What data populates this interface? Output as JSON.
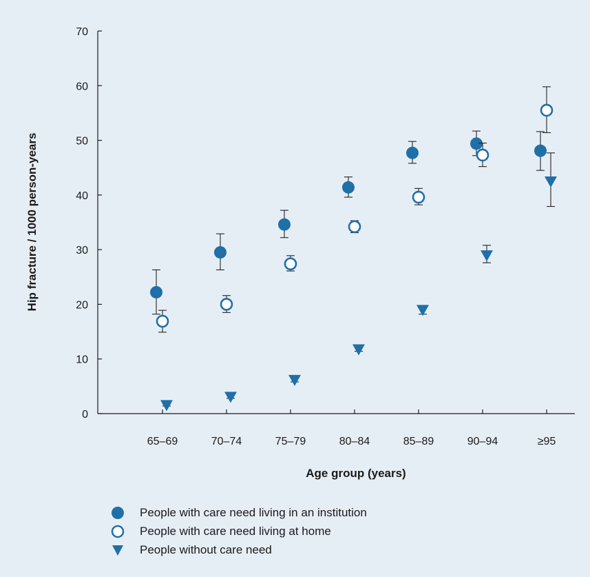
{
  "chart_data": {
    "type": "scatter",
    "xlabel": "Age group (years)",
    "ylabel": "Hip fracture / 1000 person-years",
    "categories": [
      "65–69",
      "70–74",
      "75–79",
      "80–84",
      "85–89",
      "90–94",
      "≥95"
    ],
    "ylim": [
      0,
      70
    ],
    "yticks": [
      0,
      10,
      20,
      30,
      40,
      50,
      60,
      70
    ],
    "grid": false,
    "legend_position": "bottom-left",
    "colors": {
      "series": "#1f6fa8",
      "background": "#e6eef5",
      "axis": "#1a1a1a"
    },
    "series": [
      {
        "name": "People with care need living in an institution",
        "marker": "filled-circle",
        "values": [
          22.2,
          29.5,
          34.6,
          41.4,
          47.7,
          49.4,
          48.1
        ],
        "error_upper": [
          26.3,
          32.9,
          37.2,
          43.3,
          49.8,
          51.7,
          51.6
        ],
        "error_lower": [
          18.2,
          26.3,
          32.2,
          39.6,
          45.8,
          47.2,
          44.5
        ]
      },
      {
        "name": "People with care need living at home",
        "marker": "open-circle",
        "values": [
          16.9,
          20.0,
          27.4,
          34.2,
          39.6,
          47.3,
          55.5
        ],
        "error_upper": [
          18.9,
          21.6,
          28.9,
          35.3,
          41.2,
          49.5,
          59.8
        ],
        "error_lower": [
          14.9,
          18.5,
          26.1,
          33.1,
          38.2,
          45.2,
          51.4
        ]
      },
      {
        "name": "People without care need",
        "marker": "triangle-down",
        "values": [
          1.6,
          3.1,
          6.2,
          11.8,
          19.0,
          29.0,
          42.5
        ],
        "error_upper": [
          1.8,
          3.4,
          6.6,
          12.3,
          19.8,
          30.8,
          47.7
        ],
        "error_lower": [
          1.4,
          2.8,
          5.8,
          11.4,
          18.2,
          27.6,
          37.9
        ]
      }
    ]
  }
}
